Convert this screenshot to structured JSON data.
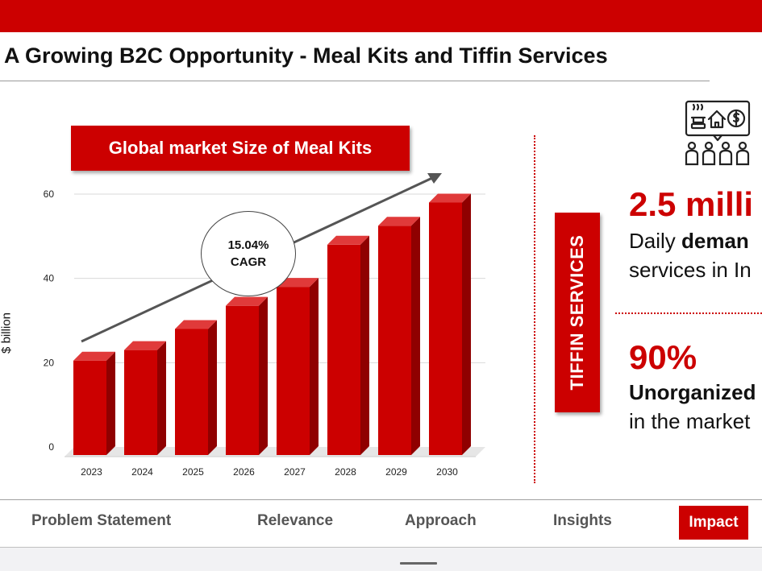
{
  "header": {
    "title": "A Growing B2C Opportunity - Meal Kits and Tiffin Services",
    "brand_color": "#cc0000"
  },
  "chart_box": {
    "title": "Global market Size of Meal Kits",
    "cagr_value": "15.04%",
    "cagr_label": "CAGR"
  },
  "chart_data": {
    "type": "bar",
    "title": "Global market Size of Meal Kits",
    "xlabel": "",
    "ylabel": "$ billion",
    "categories": [
      "2023",
      "2024",
      "2025",
      "2026",
      "2027",
      "2028",
      "2029",
      "2030"
    ],
    "values": [
      20.5,
      23,
      28,
      33.5,
      38,
      48,
      52.5,
      58
    ],
    "ylim": [
      0,
      60
    ],
    "yticks": [
      0,
      20,
      40,
      60
    ],
    "grid": true,
    "bar_color": "#cc0000",
    "annotation": "15.04% CAGR",
    "trend_arrow": true
  },
  "tiffin": {
    "label": "TIFFIN SERVICES",
    "icon": "tiffin-community-icon",
    "stat1_value": "2.5 milli",
    "stat1_line1_prefix": "Daily ",
    "stat1_line1_bold": "deman",
    "stat1_line2": "services in In",
    "stat2_value": "90%",
    "stat2_line1": "Unorganized",
    "stat2_line2": "in the market"
  },
  "nav": {
    "items": [
      "Problem Statement",
      "Relevance",
      "Approach",
      "Insights"
    ],
    "active": "Impact"
  }
}
